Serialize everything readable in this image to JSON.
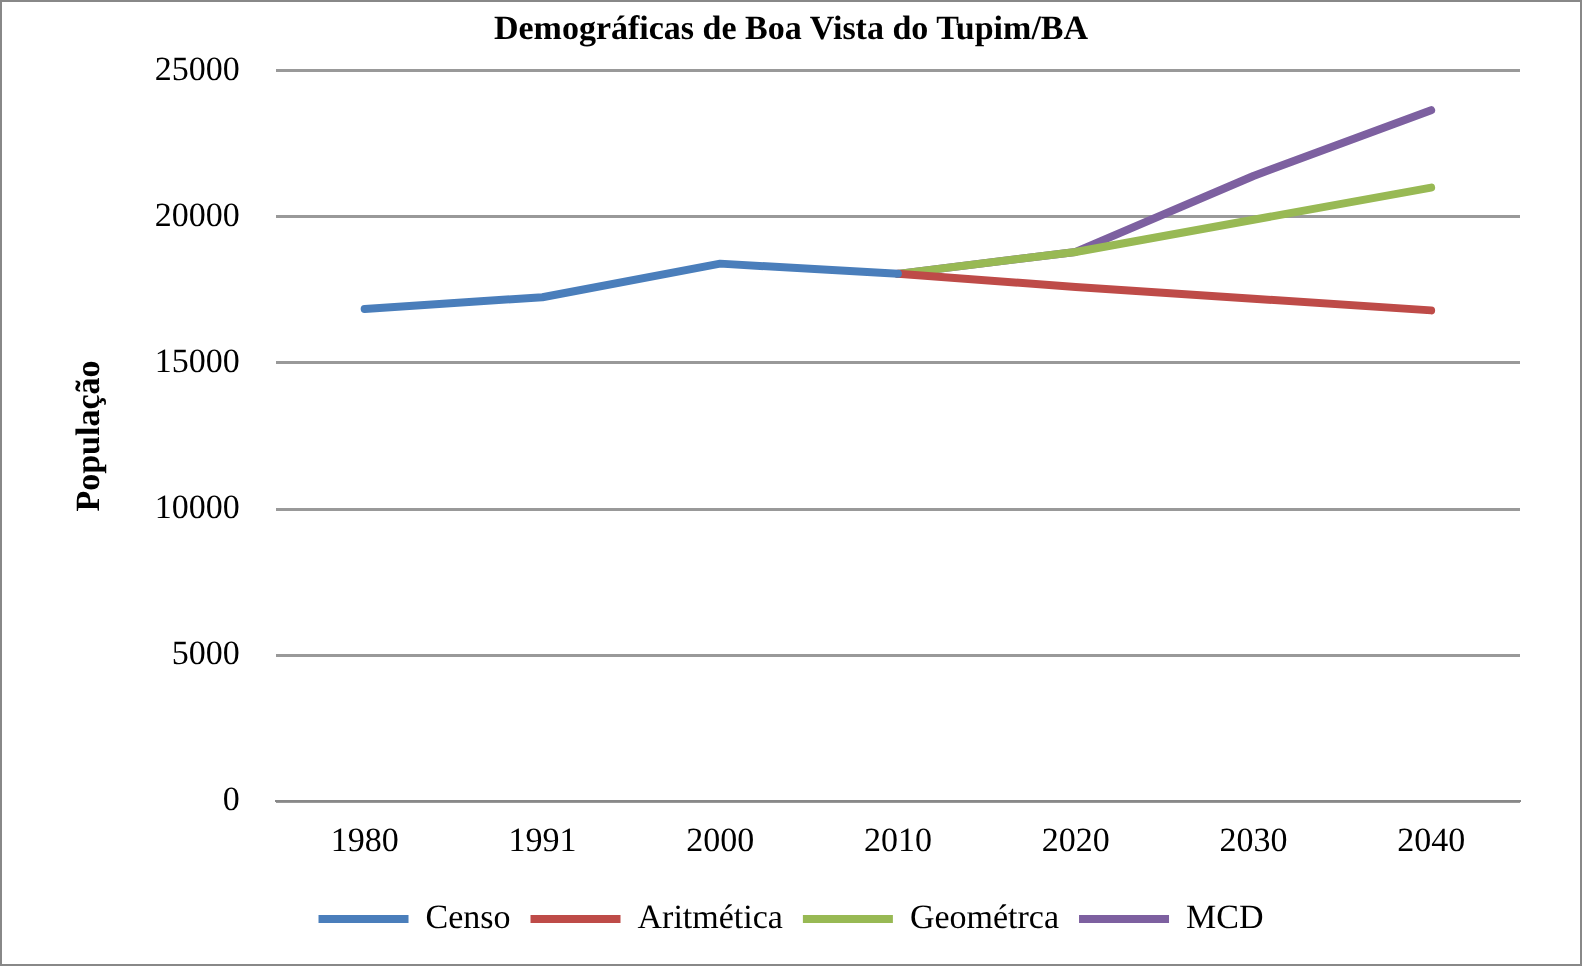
{
  "chart_data": {
    "type": "line",
    "title": "Demográficas de Boa Vista do Tupim/BA",
    "ylabel": "População",
    "categories": [
      "1980",
      "1991",
      "2000",
      "2010",
      "2020",
      "2030",
      "2040"
    ],
    "series": [
      {
        "name": "Censo",
        "color": "#4a7ebb",
        "values": [
          16850,
          17250,
          18400,
          18050,
          null,
          null,
          null
        ]
      },
      {
        "name": "Aritmética",
        "color": "#be4b48",
        "values": [
          null,
          null,
          null,
          18050,
          17600,
          17200,
          16800
        ]
      },
      {
        "name": "Geométrca",
        "color": "#98b954",
        "values": [
          null,
          null,
          null,
          18050,
          18800,
          19900,
          21000
        ]
      },
      {
        "name": "MCD",
        "color": "#7d60a0",
        "values": [
          null,
          null,
          null,
          18050,
          18800,
          21400,
          23650
        ]
      }
    ],
    "ylim": [
      0,
      25000
    ],
    "yticks": [
      0,
      5000,
      10000,
      15000,
      20000,
      25000
    ],
    "grid": "y",
    "legend": "bottom"
  }
}
